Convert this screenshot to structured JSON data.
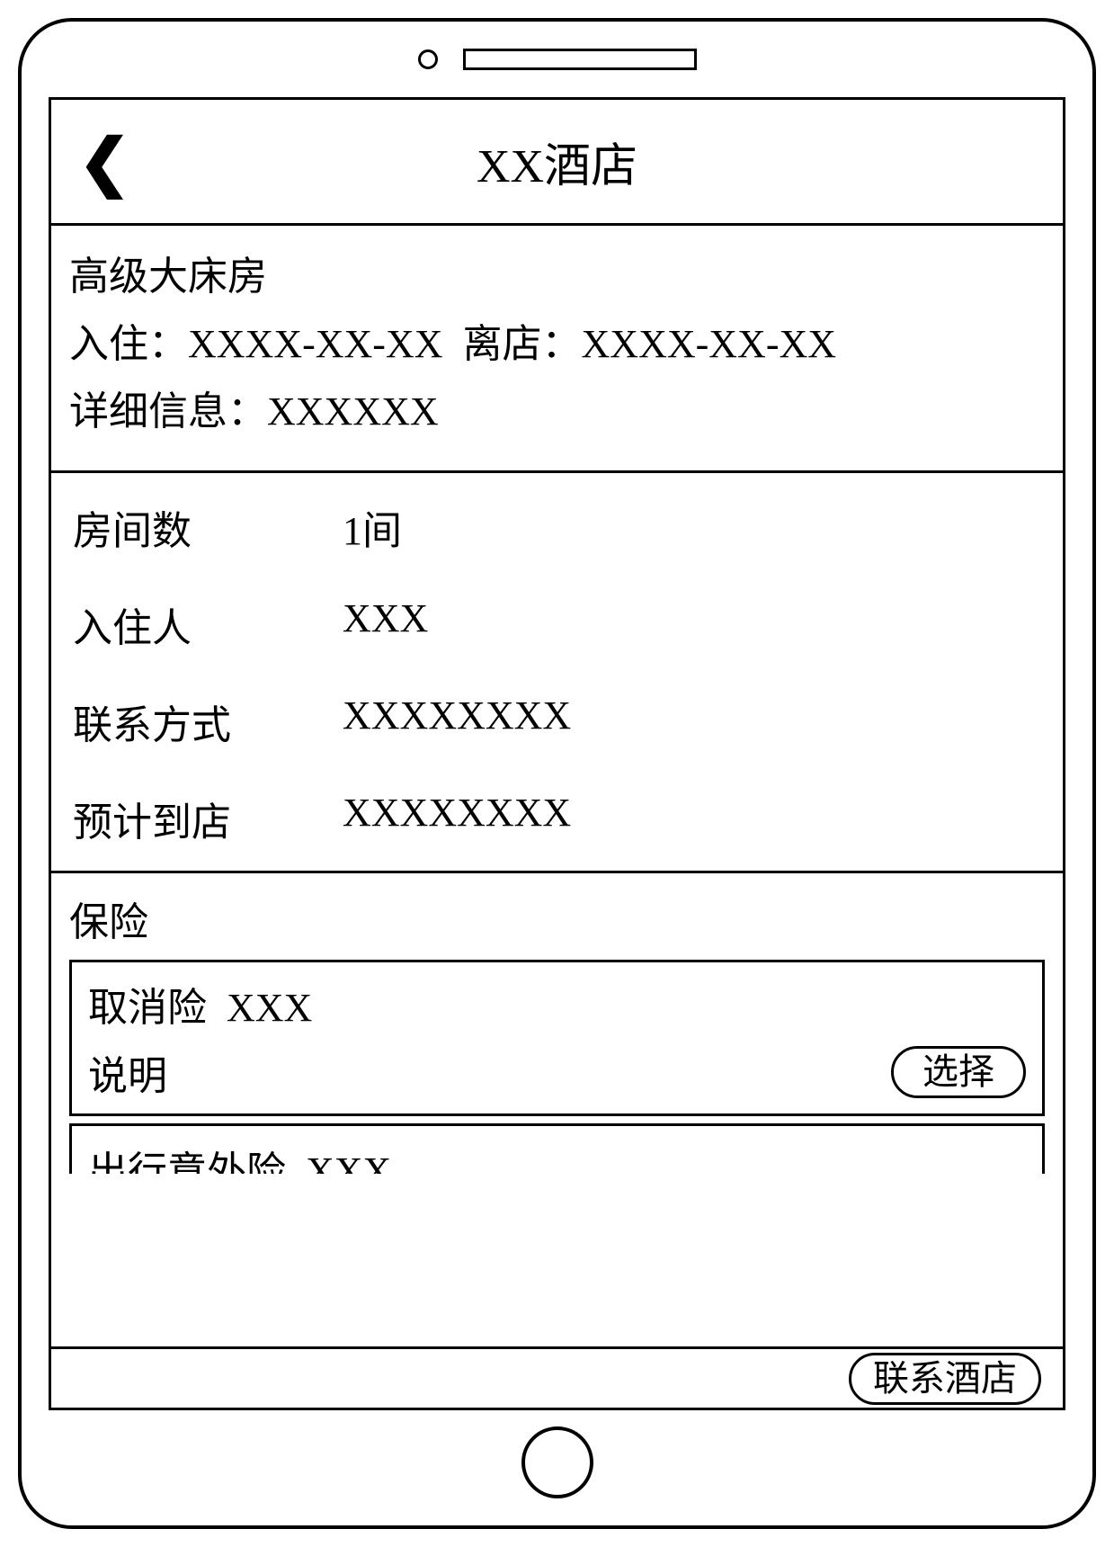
{
  "header": {
    "title": "XX酒店"
  },
  "room_info": {
    "room_type": "高级大床房",
    "checkin_label": "入住：",
    "checkin_date": "XXXX-XX-XX",
    "checkout_label": "离店：",
    "checkout_date": "XXXX-XX-XX",
    "detail_label": "详细信息：",
    "detail_value": "XXXXXX"
  },
  "booking": {
    "room_count_label": "房间数",
    "room_count_value": "1间",
    "guest_label": "入住人",
    "guest_value": "XXX",
    "contact_label": "联系方式",
    "contact_value": "XXXXXXXX",
    "arrival_label": "预计到店",
    "arrival_value": "XXXXXXXX"
  },
  "insurance": {
    "heading": "保险",
    "items": [
      {
        "title_prefix": "取消险",
        "title_value": "XXX",
        "desc_label": "说明",
        "select_label": "选择"
      },
      {
        "title_prefix": "出行意外险",
        "title_value": "XXX"
      }
    ]
  },
  "footer": {
    "contact_hotel_label": "联系酒店"
  },
  "colors": {
    "border": "#000000",
    "background": "#ffffff",
    "text": "#000000"
  }
}
